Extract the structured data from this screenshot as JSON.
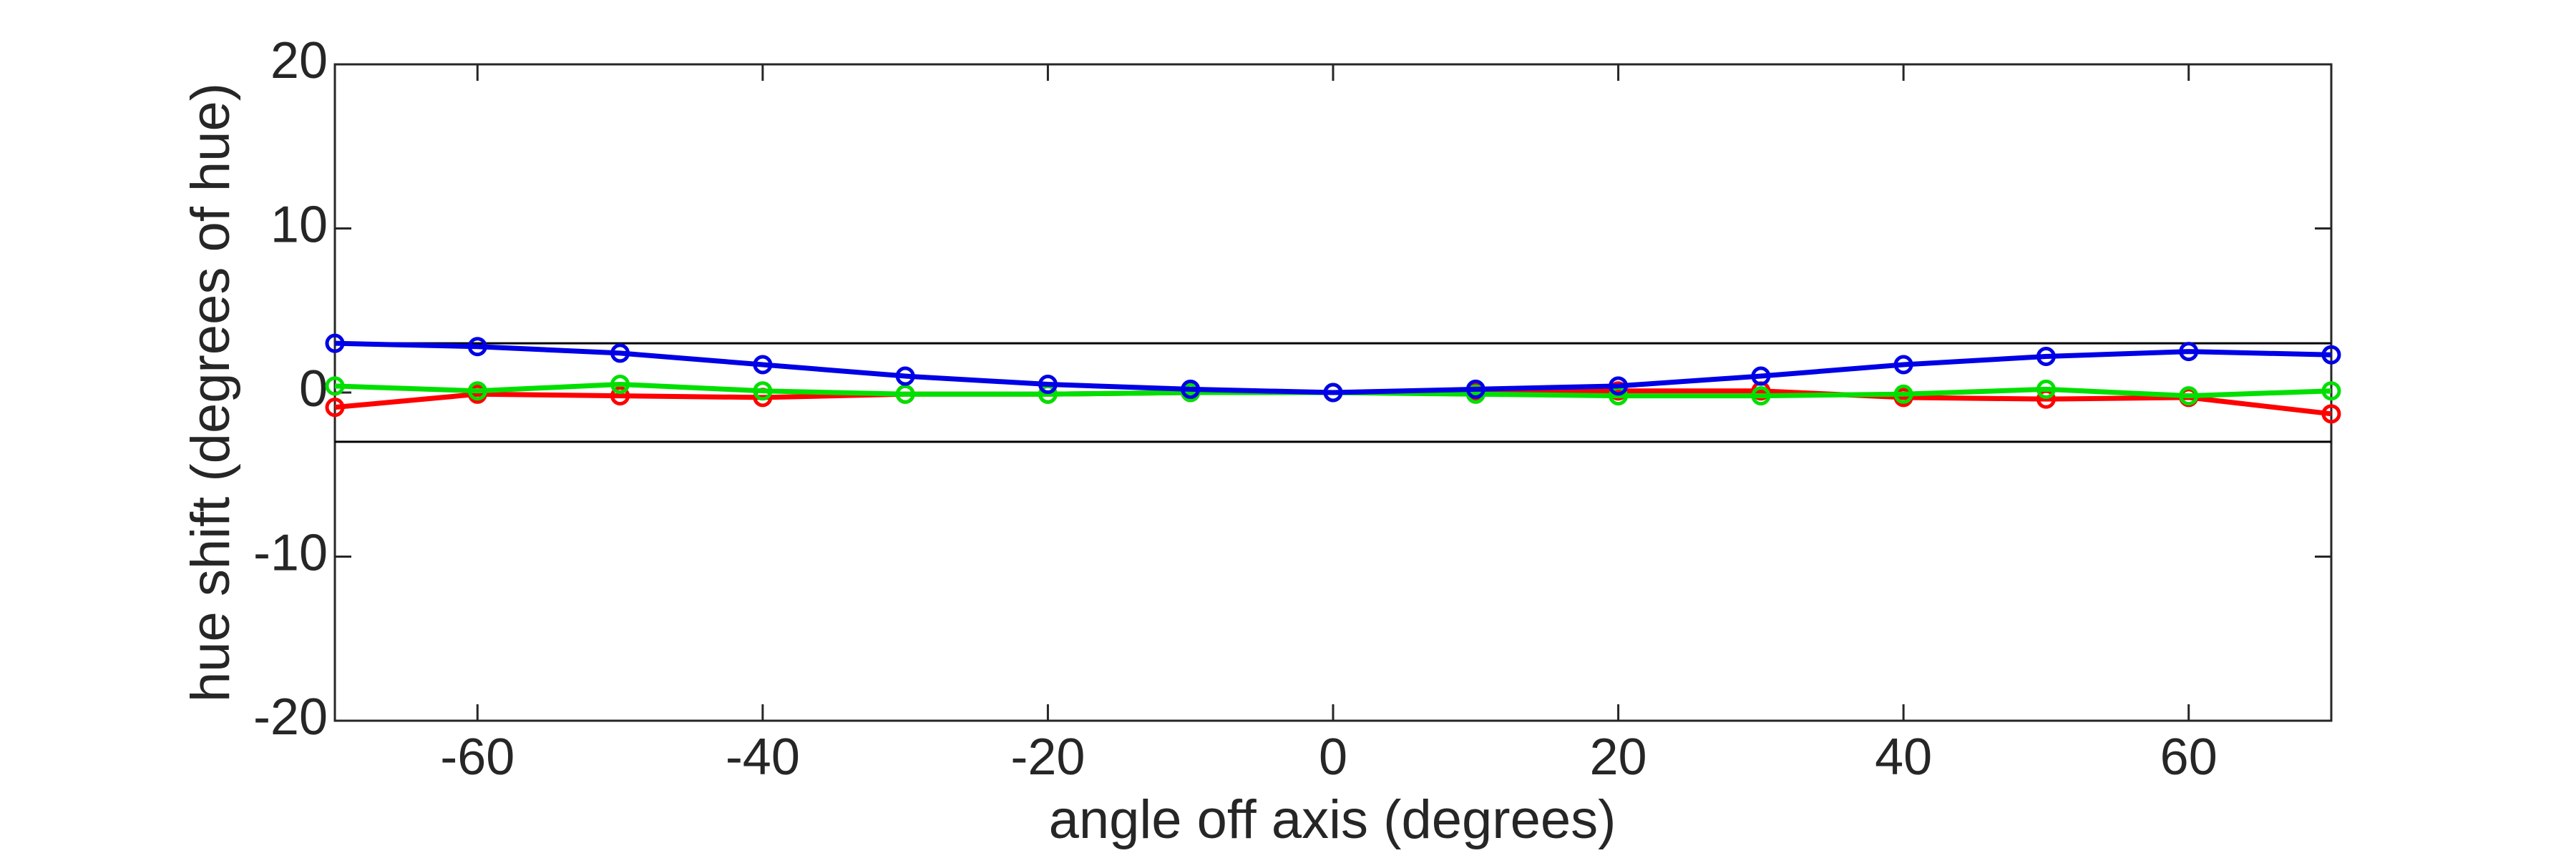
{
  "chart_data": {
    "type": "line",
    "xlabel": "angle off axis (degrees)",
    "ylabel": "hue shift (degrees of hue)",
    "x": [
      -70,
      -60,
      -50,
      -40,
      -30,
      -20,
      -10,
      0,
      10,
      20,
      30,
      40,
      50,
      60,
      70
    ],
    "series": [
      {
        "color": "#ff0000",
        "values": [
          -0.9,
          -0.1,
          -0.2,
          -0.3,
          -0.1,
          -0.1,
          0,
          0,
          0,
          0.1,
          0.1,
          -0.3,
          -0.4,
          -0.3,
          -1.3
        ]
      },
      {
        "color": "#00e000",
        "values": [
          0.4,
          0.1,
          0.5,
          0.1,
          -0.1,
          -0.1,
          0,
          0,
          -0.1,
          -0.2,
          -0.2,
          -0.1,
          0.2,
          -0.2,
          0.1
        ]
      },
      {
        "color": "#0000e6",
        "values": [
          3.0,
          2.8,
          2.4,
          1.7,
          1.0,
          0.5,
          0.2,
          0,
          0.2,
          0.4,
          1.0,
          1.7,
          2.2,
          2.5,
          2.3
        ]
      }
    ],
    "reference_lines": [
      3,
      -3
    ],
    "xlim": [
      -70,
      70
    ],
    "xticks": [
      -60,
      -40,
      -20,
      0,
      20,
      40,
      60
    ],
    "ylim": [
      -20,
      20
    ],
    "yticks": [
      -20,
      -10,
      0,
      10,
      20
    ],
    "markers": true,
    "grid": false
  }
}
